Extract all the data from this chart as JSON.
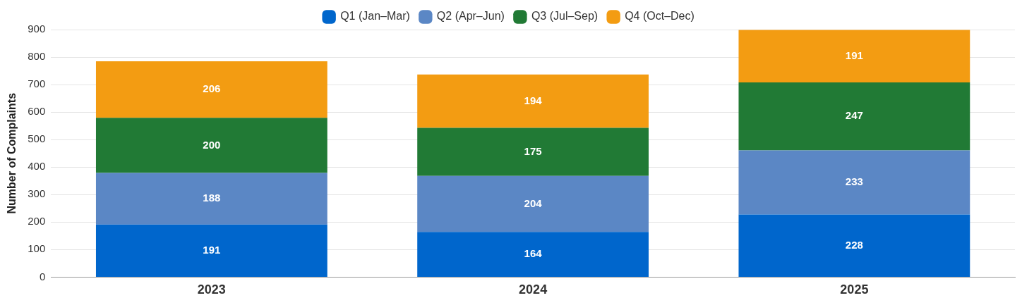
{
  "chart_data": {
    "type": "bar",
    "stacked": true,
    "ylabel": "Number of Complaints",
    "categories": [
      "2023",
      "2024",
      "2025"
    ],
    "series": [
      {
        "name": "Q1 (Jan–Mar)",
        "color": "#0066cc",
        "values": [
          191,
          164,
          228
        ]
      },
      {
        "name": "Q2 (Apr–Jun)",
        "color": "#5b87c5",
        "values": [
          188,
          204,
          233
        ]
      },
      {
        "name": "Q3 (Jul–Sep)",
        "color": "#217a35",
        "values": [
          200,
          175,
          247
        ]
      },
      {
        "name": "Q4 (Oct–Dec)",
        "color": "#f39c12",
        "values": [
          206,
          194,
          191
        ]
      }
    ],
    "ylim": [
      0,
      900
    ],
    "yticks": [
      0,
      100,
      200,
      300,
      400,
      500,
      600,
      700,
      800,
      900
    ],
    "grid": "y",
    "legend": "top",
    "data_labels": true
  }
}
